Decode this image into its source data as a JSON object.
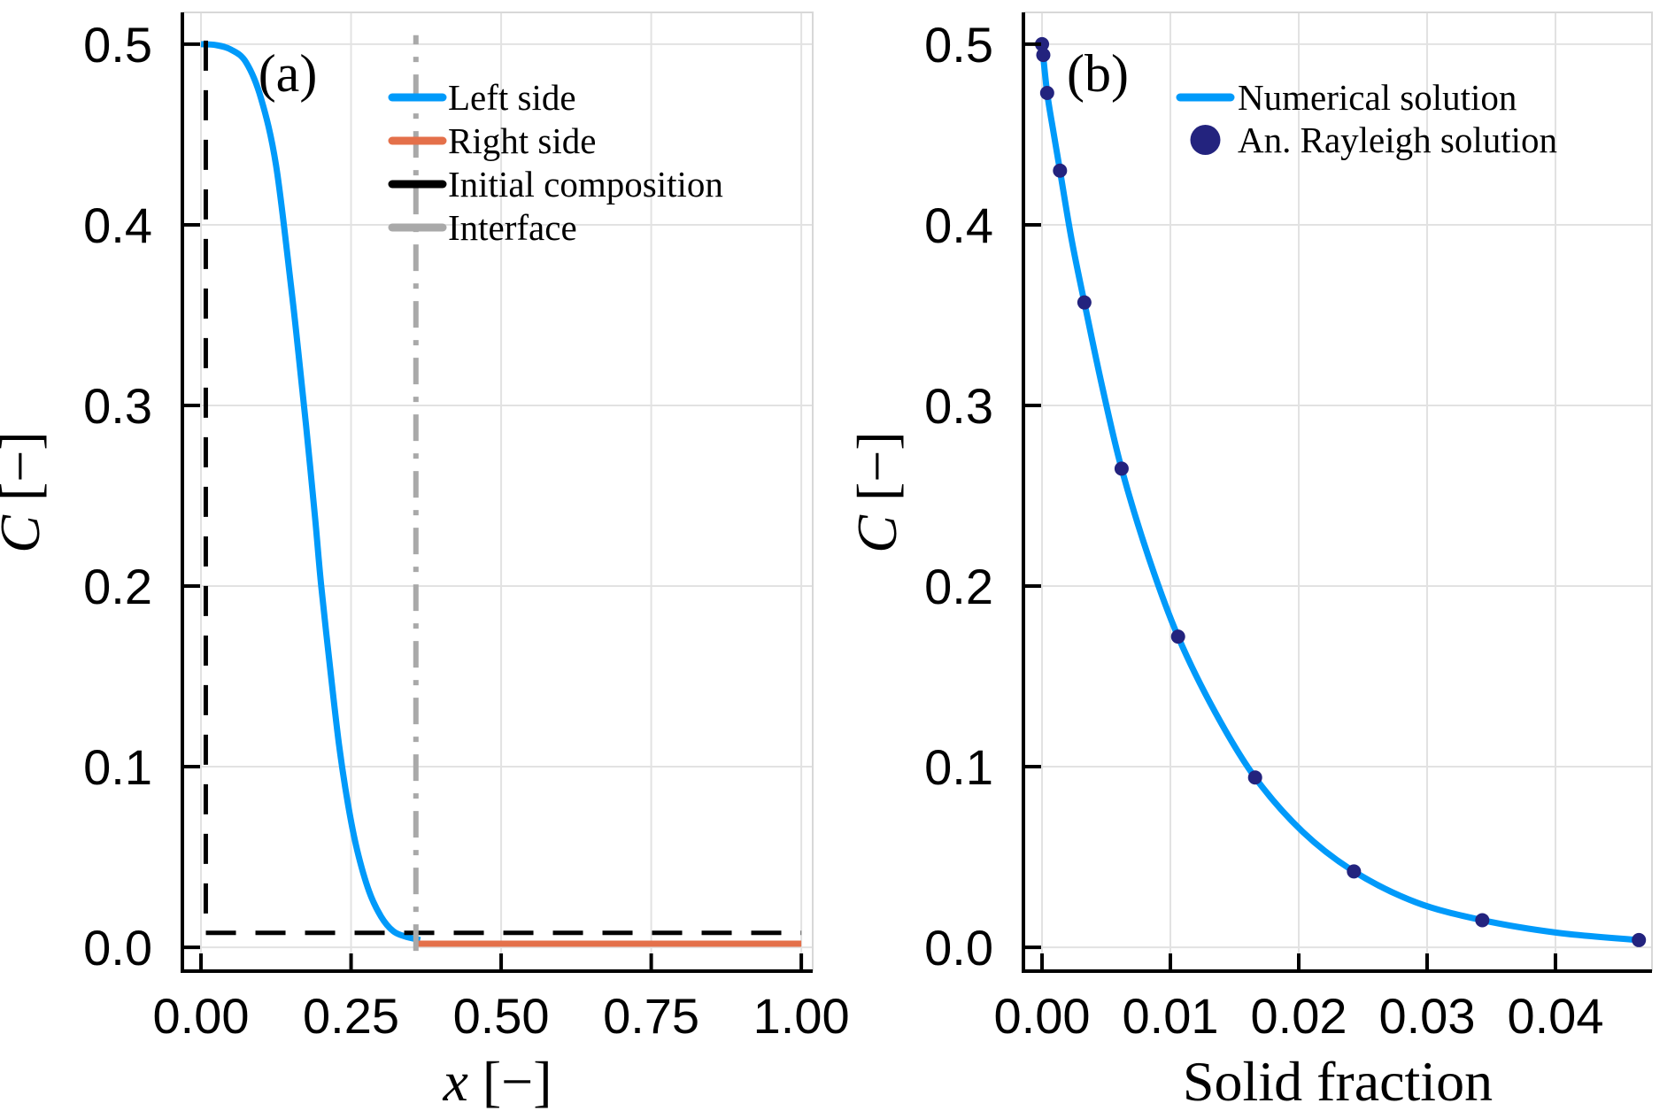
{
  "page": {
    "background": "#ffffff",
    "grid_color": "#e2e2e2",
    "frame_color": "#d8d8d8",
    "spine_color": "#000000"
  },
  "chart_data": [
    {
      "type": "line",
      "panel_tag": "(a)",
      "xlabel": {
        "variable": "x",
        "unit": " [−]",
        "italic_variable": true
      },
      "ylabel": {
        "variable": "C",
        "unit": " [−]",
        "italic_variable": true
      },
      "xlim": [
        -0.031,
        1.019
      ],
      "ylim": [
        -0.0132,
        0.5176
      ],
      "grid": true,
      "legend_position": "top-left-inside",
      "x_ticks": [
        {
          "v": 0.0,
          "label": "0.00"
        },
        {
          "v": 0.25,
          "label": "0.25"
        },
        {
          "v": 0.5,
          "label": "0.50"
        },
        {
          "v": 0.75,
          "label": "0.75"
        },
        {
          "v": 1.0,
          "label": "1.00"
        }
      ],
      "y_ticks": [
        {
          "v": 0.0,
          "label": "0.0"
        },
        {
          "v": 0.1,
          "label": "0.1"
        },
        {
          "v": 0.2,
          "label": "0.2"
        },
        {
          "v": 0.3,
          "label": "0.3"
        },
        {
          "v": 0.4,
          "label": "0.4"
        },
        {
          "v": 0.5,
          "label": "0.5"
        }
      ],
      "series": [
        {
          "name": "Left side",
          "color": "#009AFA",
          "style": "solid",
          "width": 7,
          "smooth": true,
          "points": [
            [
              0.0,
              0.5
            ],
            [
              0.025,
              0.4995
            ],
            [
              0.05,
              0.497
            ],
            [
              0.075,
              0.49
            ],
            [
              0.1,
              0.47
            ],
            [
              0.125,
              0.433
            ],
            [
              0.15,
              0.366
            ],
            [
              0.162,
              0.33
            ],
            [
              0.175,
              0.289
            ],
            [
              0.19,
              0.238
            ],
            [
              0.2,
              0.201
            ],
            [
              0.215,
              0.155
            ],
            [
              0.23,
              0.112
            ],
            [
              0.245,
              0.079
            ],
            [
              0.26,
              0.054
            ],
            [
              0.28,
              0.031
            ],
            [
              0.3,
              0.017
            ],
            [
              0.32,
              0.009
            ],
            [
              0.34,
              0.006
            ],
            [
              0.365,
              0.004
            ]
          ]
        },
        {
          "name": "Right side",
          "color": "#E4704A",
          "style": "solid",
          "width": 7,
          "smooth": false,
          "points": [
            [
              0.358,
              0.002
            ],
            [
              1.0,
              0.002
            ]
          ]
        },
        {
          "name": "Initial composition",
          "color": "#000000",
          "style": "dashed",
          "width": 5,
          "smooth": false,
          "points": [
            [
              0.008,
              0.502
            ],
            [
              0.008,
              0.008
            ],
            [
              1.0,
              0.008
            ]
          ]
        },
        {
          "name": "Interface",
          "color": "#A9A9A9",
          "style": "dashdot",
          "width": 6,
          "smooth": false,
          "points": [
            [
              0.358,
              -0.002
            ],
            [
              0.358,
              0.505
            ]
          ]
        }
      ]
    },
    {
      "type": "line+scatter",
      "panel_tag": "(b)",
      "xlabel": {
        "variable": "Solid fraction",
        "unit": "",
        "italic_variable": false
      },
      "ylabel": {
        "variable": "C",
        "unit": " [−]",
        "italic_variable": true
      },
      "xlim": [
        -0.00145,
        0.04752
      ],
      "ylim": [
        -0.0132,
        0.5176
      ],
      "grid": true,
      "legend_position": "top-inside",
      "x_ticks": [
        {
          "v": 0.0,
          "label": "0.00"
        },
        {
          "v": 0.01,
          "label": "0.01"
        },
        {
          "v": 0.02,
          "label": "0.02"
        },
        {
          "v": 0.03,
          "label": "0.03"
        },
        {
          "v": 0.04,
          "label": "0.04"
        }
      ],
      "y_ticks": [
        {
          "v": 0.0,
          "label": "0.0"
        },
        {
          "v": 0.1,
          "label": "0.1"
        },
        {
          "v": 0.2,
          "label": "0.2"
        },
        {
          "v": 0.3,
          "label": "0.3"
        },
        {
          "v": 0.4,
          "label": "0.4"
        },
        {
          "v": 0.5,
          "label": "0.5"
        }
      ],
      "series": [
        {
          "name": "Numerical solution",
          "color": "#009AFA",
          "style": "solid",
          "width": 7,
          "smooth": true,
          "points": [
            [
              0.0,
              0.5
            ],
            [
              0.0004,
              0.473
            ],
            [
              0.0009,
              0.451
            ],
            [
              0.0014,
              0.43
            ],
            [
              0.0023,
              0.392
            ],
            [
              0.0033,
              0.357
            ],
            [
              0.0047,
              0.31
            ],
            [
              0.0062,
              0.265
            ],
            [
              0.0083,
              0.216
            ],
            [
              0.0106,
              0.172
            ],
            [
              0.0135,
              0.13
            ],
            [
              0.0166,
              0.094
            ],
            [
              0.0203,
              0.064
            ],
            [
              0.0243,
              0.042
            ],
            [
              0.0291,
              0.025
            ],
            [
              0.0343,
              0.015
            ],
            [
              0.0402,
              0.008
            ],
            [
              0.0465,
              0.004
            ]
          ]
        },
        {
          "name": "An.  Rayleigh solution",
          "color": "#23237E",
          "style": "scatter",
          "marker_radius": 8,
          "points": [
            [
              0.0,
              0.5
            ],
            [
              0.0001,
              0.494
            ],
            [
              0.0004,
              0.473
            ],
            [
              0.0014,
              0.43
            ],
            [
              0.0033,
              0.357
            ],
            [
              0.0062,
              0.265
            ],
            [
              0.0106,
              0.172
            ],
            [
              0.0166,
              0.094
            ],
            [
              0.0243,
              0.042
            ],
            [
              0.0343,
              0.015
            ],
            [
              0.0465,
              0.004
            ]
          ]
        }
      ]
    }
  ]
}
